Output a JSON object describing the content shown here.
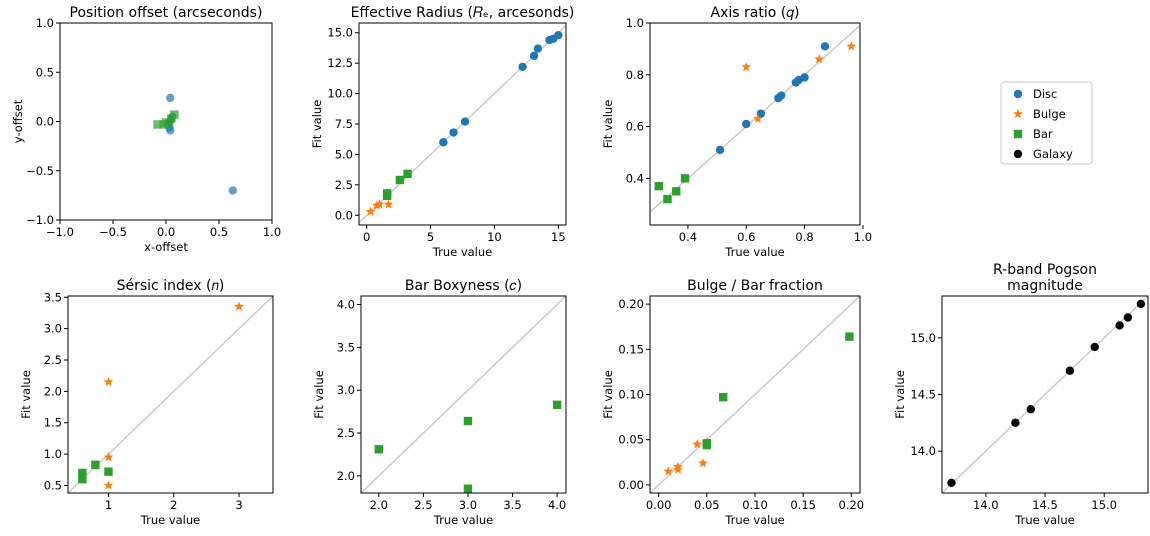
{
  "colors": {
    "disc": "#1f77b4",
    "bulge": "#ff7f0e",
    "bar": "#2ca02c",
    "galaxy": "#000000",
    "identity": "#c8c8c8"
  },
  "legend": [
    {
      "key": "disc",
      "label": "Disc",
      "marker": "circle"
    },
    {
      "key": "bulge",
      "label": "Bulge",
      "marker": "star"
    },
    {
      "key": "bar",
      "label": "Bar",
      "marker": "square"
    },
    {
      "key": "galaxy",
      "label": "Galaxy",
      "marker": "circle"
    }
  ],
  "chart_data": [
    {
      "id": "position",
      "type": "scatter",
      "title": "Position offset (arcseconds)",
      "xlabel": "x-offset",
      "ylabel": "y-offset",
      "xlim": [
        -1.0,
        1.0
      ],
      "ylim": [
        -1.0,
        1.0
      ],
      "xticks": [
        -1.0,
        -0.5,
        0.0,
        0.5,
        1.0
      ],
      "yticks": [
        -1.0,
        -0.5,
        0.0,
        0.5,
        1.0
      ],
      "xtick_labels": [
        "−1.0",
        "−0.5",
        "0.0",
        "0.5",
        "1.0"
      ],
      "ytick_labels": [
        "−1.0",
        "−0.5",
        "0.0",
        "0.5",
        "1.0"
      ],
      "identity_line": false,
      "series": [
        {
          "key": "disc",
          "alpha": 0.7,
          "points": [
            [
              0.04,
              0.24
            ],
            [
              0.63,
              -0.7
            ],
            [
              0.04,
              -0.09
            ],
            [
              0.03,
              -0.06
            ],
            [
              0.05,
              0.02
            ],
            [
              0.06,
              0.05
            ],
            [
              0.02,
              -0.02
            ]
          ]
        },
        {
          "key": "bar",
          "alpha": 0.7,
          "points": [
            [
              -0.08,
              -0.03
            ],
            [
              -0.02,
              -0.03
            ],
            [
              0.0,
              -0.01
            ],
            [
              0.03,
              -0.02
            ],
            [
              0.08,
              0.07
            ],
            [
              0.05,
              0.03
            ]
          ]
        }
      ]
    },
    {
      "id": "radius",
      "type": "scatter",
      "title": "Effective Radius (𝑅ₑ, arcesonds)",
      "xlabel": "True value",
      "ylabel": "Fit value",
      "xlim": [
        -0.6,
        15.6
      ],
      "ylim": [
        -0.8,
        15.8
      ],
      "xticks": [
        0,
        5,
        10,
        15
      ],
      "yticks": [
        0.0,
        2.5,
        5.0,
        7.5,
        10.0,
        12.5,
        15.0
      ],
      "xtick_labels": [
        "0",
        "5",
        "10",
        "15"
      ],
      "ytick_labels": [
        "0.0",
        "2.5",
        "5.0",
        "7.5",
        "10.0",
        "12.5",
        "15.0"
      ],
      "identity_line": true,
      "series": [
        {
          "key": "disc",
          "points": [
            [
              6.0,
              6.0
            ],
            [
              6.8,
              6.8
            ],
            [
              7.7,
              7.7
            ],
            [
              12.2,
              12.2
            ],
            [
              13.1,
              13.1
            ],
            [
              13.4,
              13.7
            ],
            [
              14.3,
              14.4
            ],
            [
              14.6,
              14.5
            ],
            [
              15.0,
              14.8
            ]
          ]
        },
        {
          "key": "bulge",
          "points": [
            [
              0.3,
              0.3
            ],
            [
              0.8,
              0.8
            ],
            [
              1.0,
              0.9
            ],
            [
              1.7,
              0.9
            ]
          ]
        },
        {
          "key": "bar",
          "points": [
            [
              1.6,
              1.6
            ],
            [
              1.6,
              1.8
            ],
            [
              2.6,
              2.9
            ],
            [
              3.2,
              3.4
            ]
          ]
        }
      ]
    },
    {
      "id": "axisratio",
      "type": "scatter",
      "title": "Axis ratio (𝑞)",
      "xlabel": "True value",
      "ylabel": "Fit value",
      "xlim": [
        0.27,
        0.99
      ],
      "ylim": [
        0.22,
        1.0
      ],
      "xticks": [
        0.4,
        0.6,
        0.8,
        1.0
      ],
      "yticks": [
        0.4,
        0.6,
        0.8,
        1.0
      ],
      "xtick_labels": [
        "0.4",
        "0.6",
        "0.8",
        "1.0"
      ],
      "ytick_labels": [
        "0.4",
        "0.6",
        "0.8",
        "1.0"
      ],
      "identity_line": true,
      "series": [
        {
          "key": "disc",
          "points": [
            [
              0.51,
              0.51
            ],
            [
              0.6,
              0.61
            ],
            [
              0.65,
              0.65
            ],
            [
              0.71,
              0.71
            ],
            [
              0.72,
              0.72
            ],
            [
              0.77,
              0.77
            ],
            [
              0.78,
              0.78
            ],
            [
              0.8,
              0.79
            ],
            [
              0.87,
              0.91
            ]
          ]
        },
        {
          "key": "bulge",
          "points": [
            [
              0.6,
              0.83
            ],
            [
              0.64,
              0.63
            ],
            [
              0.85,
              0.86
            ],
            [
              0.96,
              0.91
            ]
          ]
        },
        {
          "key": "bar",
          "points": [
            [
              0.3,
              0.37
            ],
            [
              0.33,
              0.32
            ],
            [
              0.36,
              0.35
            ],
            [
              0.39,
              0.4
            ]
          ]
        }
      ]
    },
    {
      "id": "sersic",
      "type": "scatter",
      "title": "Sérsic index (𝑛)",
      "xlabel": "True value",
      "ylabel": "Fit value",
      "xlim": [
        0.38,
        3.52
      ],
      "ylim": [
        0.38,
        3.52
      ],
      "xticks": [
        1,
        2,
        3
      ],
      "yticks": [
        0.5,
        1.0,
        1.5,
        2.0,
        2.5,
        3.0,
        3.5
      ],
      "xtick_labels": [
        "1",
        "2",
        "3"
      ],
      "ytick_labels": [
        "0.5",
        "1.0",
        "1.5",
        "2.0",
        "2.5",
        "3.0",
        "3.5"
      ],
      "identity_line": true,
      "series": [
        {
          "key": "bulge",
          "points": [
            [
              1.0,
              2.15
            ],
            [
              1.0,
              0.95
            ],
            [
              1.0,
              0.5
            ],
            [
              3.0,
              3.35
            ]
          ]
        },
        {
          "key": "bar",
          "points": [
            [
              0.6,
              0.7
            ],
            [
              0.6,
              0.6
            ],
            [
              0.8,
              0.83
            ],
            [
              1.0,
              0.72
            ]
          ]
        }
      ]
    },
    {
      "id": "boxyness",
      "type": "scatter",
      "title": "Bar Boxyness (𝑐)",
      "xlabel": "True value",
      "ylabel": "Fit value",
      "xlim": [
        1.8,
        4.1
      ],
      "ylim": [
        1.8,
        4.1
      ],
      "xticks": [
        2.0,
        2.5,
        3.0,
        3.5,
        4.0
      ],
      "yticks": [
        2.0,
        2.5,
        3.0,
        3.5,
        4.0
      ],
      "xtick_labels": [
        "2.0",
        "2.5",
        "3.0",
        "3.5",
        "4.0"
      ],
      "ytick_labels": [
        "2.0",
        "2.5",
        "3.0",
        "3.5",
        "4.0"
      ],
      "identity_line": true,
      "series": [
        {
          "key": "bar",
          "points": [
            [
              2.0,
              2.31
            ],
            [
              3.0,
              2.64
            ],
            [
              3.0,
              1.85
            ],
            [
              4.0,
              2.83
            ]
          ]
        }
      ]
    },
    {
      "id": "fraction",
      "type": "scatter",
      "title": "Bulge / Bar fraction",
      "xlabel": "True value",
      "ylabel": "Fit value",
      "xlim": [
        -0.009,
        0.209
      ],
      "ylim": [
        -0.009,
        0.209
      ],
      "xticks": [
        0.0,
        0.05,
        0.1,
        0.15,
        0.2
      ],
      "yticks": [
        0.0,
        0.05,
        0.1,
        0.15,
        0.2
      ],
      "xtick_labels": [
        "0.00",
        "0.05",
        "0.10",
        "0.15",
        "0.20"
      ],
      "ytick_labels": [
        "0.00",
        "0.05",
        "0.10",
        "0.15",
        "0.20"
      ],
      "identity_line": true,
      "series": [
        {
          "key": "bulge",
          "points": [
            [
              0.01,
              0.015
            ],
            [
              0.02,
              0.017
            ],
            [
              0.02,
              0.02
            ],
            [
              0.04,
              0.045
            ],
            [
              0.046,
              0.024
            ],
            [
              0.05,
              0.047
            ]
          ]
        },
        {
          "key": "bar",
          "points": [
            [
              0.05,
              0.046
            ],
            [
              0.05,
              0.044
            ],
            [
              0.067,
              0.097
            ],
            [
              0.198,
              0.164
            ]
          ]
        }
      ]
    },
    {
      "id": "magnitude",
      "type": "scatter",
      "title": "R-band Pogson",
      "title_line2": "magnitude",
      "xlabel": "True value",
      "ylabel": "Fit value",
      "xlim": [
        13.63,
        15.37
      ],
      "ylim": [
        13.63,
        15.37
      ],
      "xticks": [
        14.0,
        14.5,
        15.0
      ],
      "yticks": [
        14.0,
        14.5,
        15.0
      ],
      "xtick_labels": [
        "14.0",
        "14.5",
        "15.0"
      ],
      "ytick_labels": [
        "14.0",
        "14.5",
        "15.0"
      ],
      "identity_line": true,
      "series": [
        {
          "key": "galaxy",
          "points": [
            [
              13.71,
              13.72
            ],
            [
              14.25,
              14.25
            ],
            [
              14.38,
              14.37
            ],
            [
              14.71,
              14.71
            ],
            [
              14.92,
              14.92
            ],
            [
              15.13,
              15.11
            ],
            [
              15.2,
              15.18
            ],
            [
              15.31,
              15.3
            ]
          ]
        }
      ]
    }
  ]
}
